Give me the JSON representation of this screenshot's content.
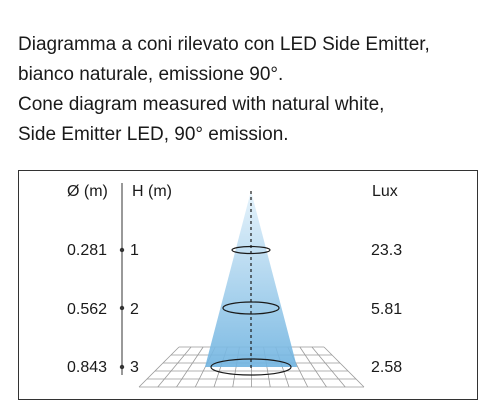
{
  "caption": {
    "lines": [
      "Diagramma a coni rilevato con LED Side Emitter,",
      "bianco naturale, emissione 90°.",
      "Cone diagram measured with natural white,",
      "Side Emitter LED, 90° emission."
    ]
  },
  "diagram": {
    "headers": {
      "diameter": "Ø (m)",
      "height": "H (m)",
      "lux": "Lux"
    },
    "rows": [
      {
        "height": "1",
        "diameter": "0.281",
        "lux": "23.3"
      },
      {
        "height": "2",
        "diameter": "0.562",
        "lux": "5.81"
      },
      {
        "height": "3",
        "diameter": "0.843",
        "lux": "2.58"
      }
    ],
    "colors": {
      "beam_top": "#e4f2fb",
      "beam_bottom": "#6fb3e0",
      "grid": "#9a9a9a",
      "ellipse": "#1a1a1a",
      "axis": "#333333"
    }
  }
}
